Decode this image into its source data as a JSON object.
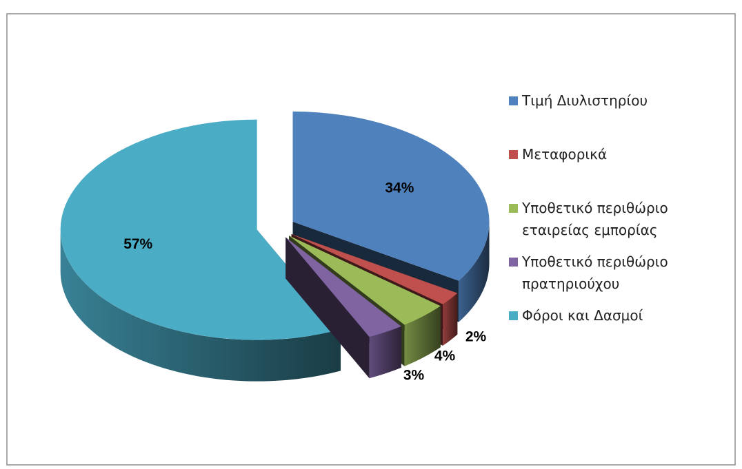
{
  "chart_data": {
    "type": "pie",
    "categories": [
      "Τιμή Διυλιστηρίου",
      "Μεταφορικά",
      "Υποθετικό περιθώριο εταιρείας εμπορίας",
      "Υποθετικό περιθώριο πρατηριούχου",
      "Φόροι και Δασμοί"
    ],
    "values": [
      34,
      2,
      4,
      3,
      57
    ],
    "value_labels": [
      "34%",
      "2%",
      "4%",
      "3%",
      "57%"
    ],
    "colors": [
      "#4f81bd",
      "#c0504d",
      "#9bbb59",
      "#8064a2",
      "#4bacc6"
    ],
    "legend": "right"
  }
}
